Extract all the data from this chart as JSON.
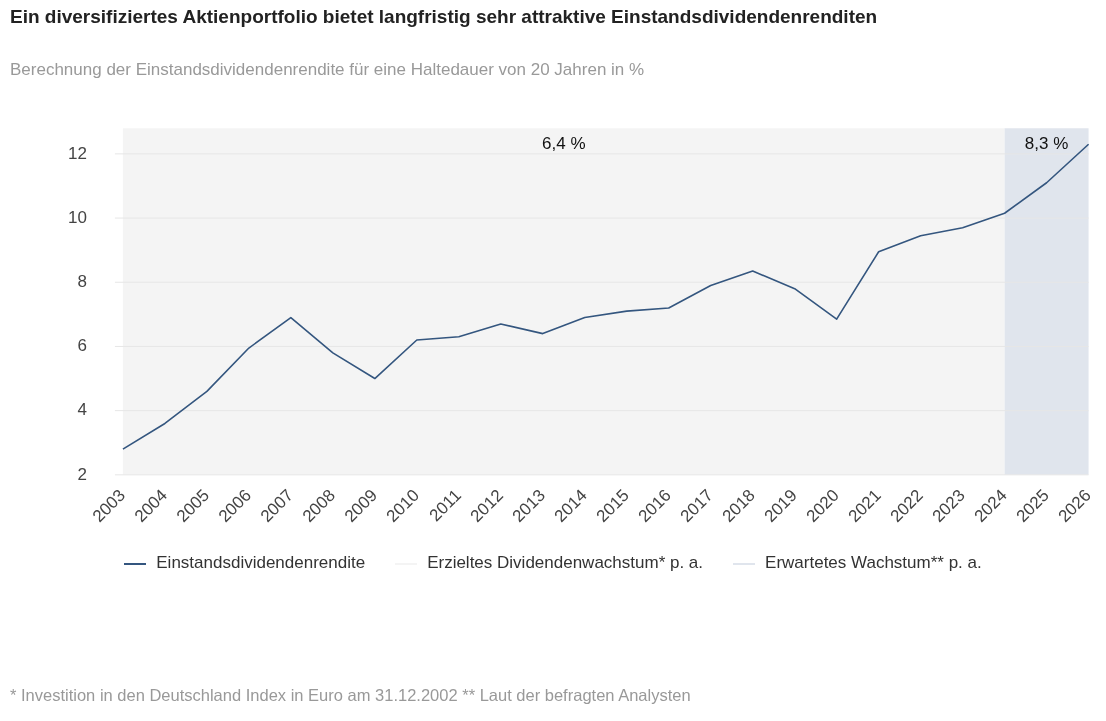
{
  "chart_data": {
    "type": "line",
    "title": "Ein diversifiziertes Aktienportfolio bietet langfristig sehr attraktive Einstandsdividendenrenditen",
    "subtitle": "Berechnung der Einstandsdividendenrendite für eine Haltedauer von 20 Jahren in %",
    "categories": [
      "2003",
      "2004",
      "2005",
      "2006",
      "2007",
      "2008",
      "2009",
      "2010",
      "2011",
      "2012",
      "2013",
      "2014",
      "2015",
      "2016",
      "2017",
      "2018",
      "2019",
      "2020",
      "2021",
      "2022",
      "2023",
      "2024",
      "2025",
      "2026"
    ],
    "series": [
      {
        "name": "Einstandsdividendenrendite",
        "color": "#34567f",
        "values": [
          2.8,
          3.6,
          4.6,
          5.95,
          6.9,
          5.8,
          5.0,
          6.2,
          6.3,
          6.7,
          6.4,
          6.9,
          7.1,
          7.2,
          7.9,
          8.35,
          7.8,
          6.85,
          8.95,
          9.45,
          9.7,
          10.15,
          11.1,
          12.3
        ]
      }
    ],
    "bands": [
      {
        "axis": "x",
        "from": "2003",
        "to": "2024",
        "label": "6,4 %",
        "color": "#f4f4f4"
      },
      {
        "axis": "x",
        "from": "2024",
        "to": "2026",
        "label": "8,3 %",
        "color": "#e0e5ed"
      }
    ],
    "ylim": [
      2,
      12.8
    ],
    "yticks": [
      2,
      4,
      6,
      8,
      10,
      12
    ],
    "grid": "y",
    "legend": "bottom",
    "marker": "none",
    "line_style": "solid",
    "annotations": [
      "Erzieltes Dividendenwachstum* p. a.",
      "Erwartetes Wachstum** p. a.",
      "* Investition in den Deutschland Index in Euro am 31.12.2002 ** Laut der befragten Analysten"
    ]
  }
}
